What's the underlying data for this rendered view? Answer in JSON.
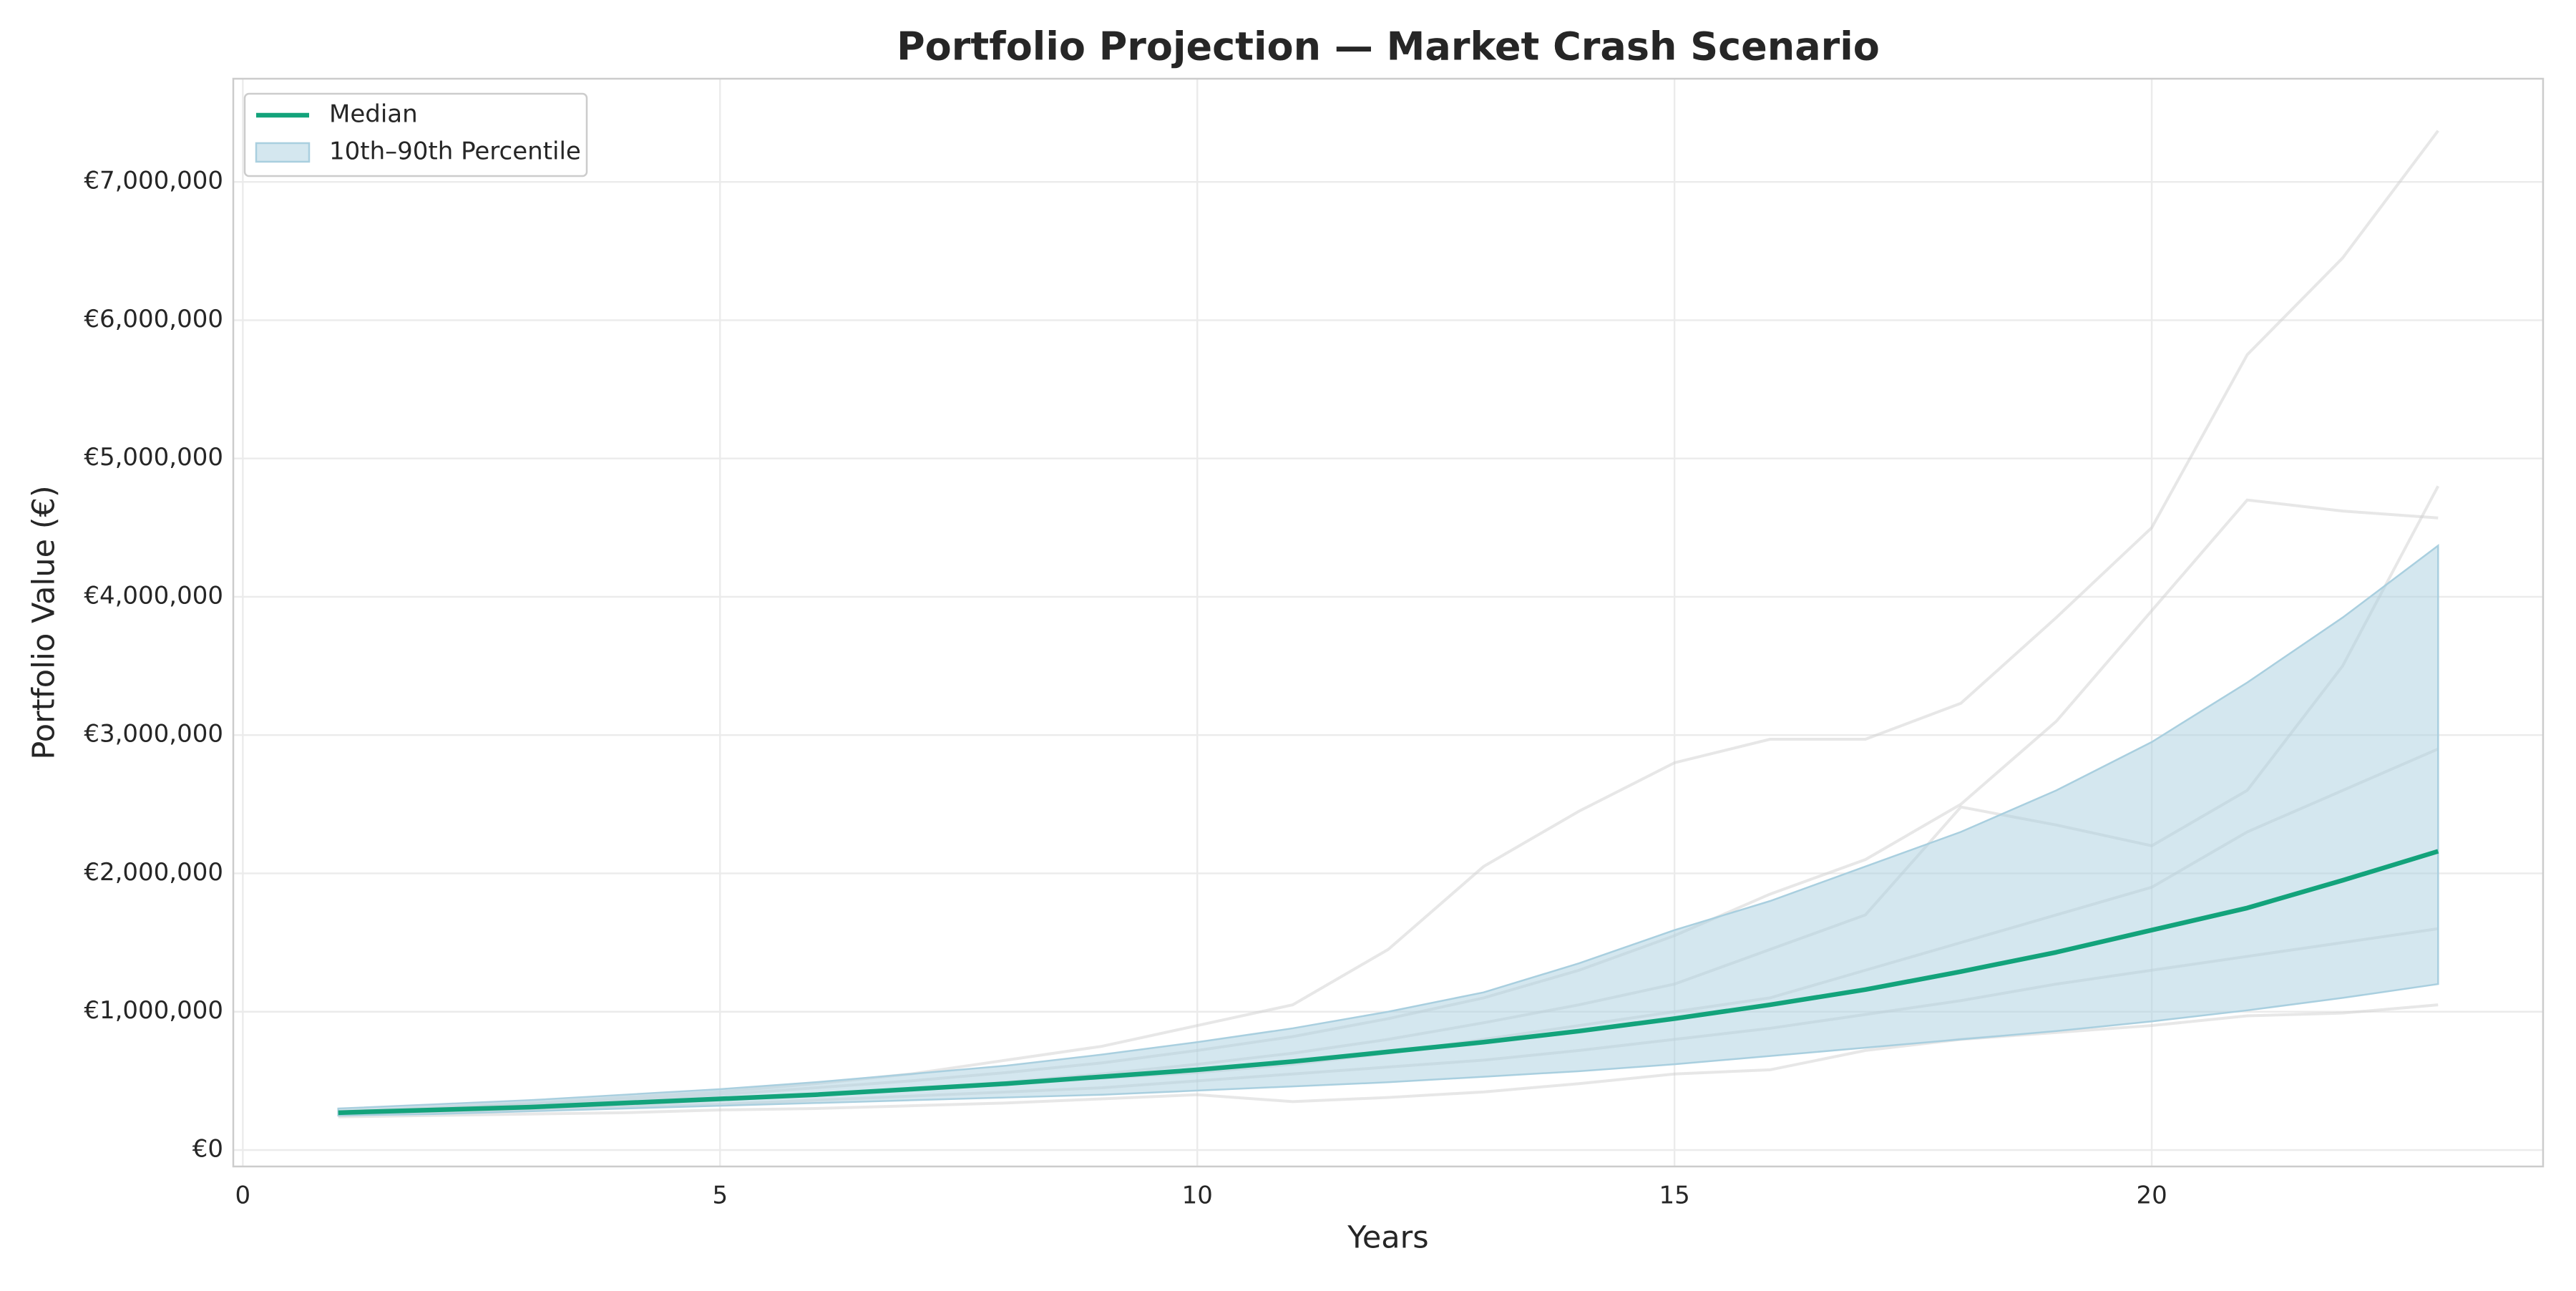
{
  "chart_data": {
    "type": "line",
    "title": "Portfolio Projection — Market Crash Scenario",
    "x_label": "Years",
    "y_label": "Portfolio Value (€)",
    "x": [
      1,
      2,
      3,
      4,
      5,
      6,
      7,
      8,
      9,
      10,
      11,
      12,
      13,
      14,
      15,
      16,
      17,
      18,
      19,
      20,
      21,
      22,
      23
    ],
    "series": [
      {
        "name": "Median",
        "color": "#13a37b",
        "values": [
          270000,
          290000,
          310000,
          340000,
          370000,
          400000,
          440000,
          480000,
          530000,
          580000,
          640000,
          710000,
          780000,
          860000,
          950000,
          1050000,
          1160000,
          1290000,
          1430000,
          1590000,
          1750000,
          1950000,
          2160000
        ]
      }
    ],
    "band": {
      "name": "10th–90th Percentile",
      "color": "#a9cfdf",
      "lower": [
        250000,
        260000,
        280000,
        300000,
        320000,
        340000,
        360000,
        380000,
        400000,
        430000,
        460000,
        490000,
        530000,
        570000,
        620000,
        680000,
        740000,
        800000,
        860000,
        930000,
        1010000,
        1100000,
        1200000
      ],
      "upper": [
        300000,
        330000,
        360000,
        400000,
        440000,
        490000,
        550000,
        610000,
        690000,
        780000,
        880000,
        1000000,
        1140000,
        1350000,
        1590000,
        1800000,
        2050000,
        2300000,
        2600000,
        2950000,
        3380000,
        3850000,
        4370000
      ]
    },
    "simulations": {
      "color": "#cfcfcf",
      "paths": [
        [
          280000,
          310000,
          340000,
          380000,
          420000,
          480000,
          550000,
          650000,
          750000,
          900000,
          1050000,
          1450000,
          2050000,
          2450000,
          2800000,
          2970000,
          2970000,
          3230000,
          3850000,
          4500000,
          5750000,
          6450000,
          7370000
        ],
        [
          270000,
          300000,
          330000,
          360000,
          400000,
          450000,
          500000,
          560000,
          630000,
          720000,
          820000,
          950000,
          1100000,
          1300000,
          1550000,
          1850000,
          2100000,
          2500000,
          3100000,
          3900000,
          4700000,
          4620000,
          4570000
        ],
        [
          260000,
          280000,
          300000,
          330000,
          360000,
          400000,
          440000,
          490000,
          550000,
          620000,
          700000,
          800000,
          920000,
          1050000,
          1200000,
          1450000,
          1700000,
          2480000,
          2350000,
          2200000,
          2600000,
          3500000,
          4800000
        ],
        [
          240000,
          250000,
          260000,
          270000,
          290000,
          300000,
          320000,
          340000,
          370000,
          400000,
          350000,
          380000,
          420000,
          480000,
          550000,
          580000,
          720000,
          800000,
          850000,
          900000,
          970000,
          990000,
          1050000
        ],
        [
          270000,
          290000,
          320000,
          340000,
          370000,
          400000,
          440000,
          480000,
          520000,
          560000,
          620000,
          700000,
          800000,
          900000,
          1000000,
          1100000,
          1300000,
          1500000,
          1700000,
          1900000,
          2300000,
          2600000,
          2900000
        ],
        [
          250000,
          270000,
          290000,
          310000,
          330000,
          360000,
          390000,
          420000,
          450000,
          500000,
          550000,
          600000,
          650000,
          720000,
          800000,
          880000,
          980000,
          1080000,
          1200000,
          1300000,
          1400000,
          1500000,
          1600000
        ]
      ]
    },
    "xlim": [
      -0.1,
      24.1
    ],
    "ylim": [
      -119000,
      7746000
    ],
    "xticks": [
      0,
      5,
      10,
      15,
      20
    ],
    "yticks": [
      {
        "value": 0,
        "label": "€0"
      },
      {
        "value": 1000000,
        "label": "€1,000,000"
      },
      {
        "value": 2000000,
        "label": "€2,000,000"
      },
      {
        "value": 3000000,
        "label": "€3,000,000"
      },
      {
        "value": 4000000,
        "label": "€4,000,000"
      },
      {
        "value": 5000000,
        "label": "€5,000,000"
      },
      {
        "value": 6000000,
        "label": "€6,000,000"
      },
      {
        "value": 7000000,
        "label": "€7,000,000"
      }
    ],
    "grid": true,
    "legend": "upper left"
  }
}
